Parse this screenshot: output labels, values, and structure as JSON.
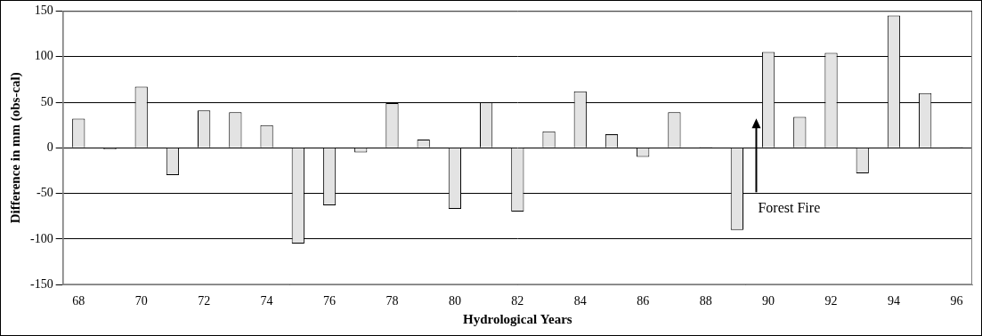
{
  "chart_data": {
    "type": "bar",
    "x_label": "Hydrological Years",
    "y_label": "Difference in mm (obs-cal)",
    "categories": [
      "68",
      null,
      "70",
      null,
      "72",
      null,
      "74",
      null,
      "76",
      null,
      "78",
      null,
      "80",
      null,
      "82",
      null,
      "84",
      null,
      "86",
      null,
      "88",
      null,
      "90",
      null,
      "92",
      null,
      "94",
      null,
      "96"
    ],
    "values": [
      32,
      -2,
      67,
      -30,
      41,
      39,
      25,
      -105,
      -63,
      -5,
      49,
      9,
      -67,
      50,
      -70,
      18,
      62,
      15,
      -10,
      39,
      1,
      -90,
      105,
      34,
      104,
      -28,
      145,
      60,
      1
    ],
    "color": "#e3e3e3",
    "ylim": [
      -150,
      150
    ],
    "yticks": [
      -150,
      -100,
      -50,
      0,
      50,
      100,
      150
    ],
    "grid": true,
    "annotations": [
      {
        "text": "Forest Fire"
      }
    ]
  }
}
